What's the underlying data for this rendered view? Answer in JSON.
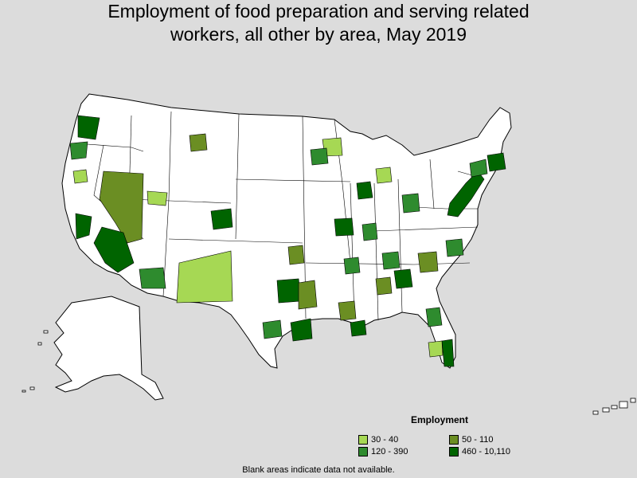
{
  "title": {
    "line1": "Employment of food preparation and serving related",
    "line2": "workers, all other by area, May 2019"
  },
  "legend": {
    "title": "Employment",
    "items": [
      {
        "label": "30 - 40",
        "color": "#a6d854"
      },
      {
        "label": "50 - 110",
        "color": "#6b8e23"
      },
      {
        "label": "120 - 390",
        "color": "#2e8b2e"
      },
      {
        "label": "460 - 10,110",
        "color": "#006400"
      }
    ]
  },
  "note": "Blank areas indicate data not available.",
  "colors": {
    "background": "#dcdcdc",
    "land": "#ffffff",
    "border": "#000000"
  }
}
